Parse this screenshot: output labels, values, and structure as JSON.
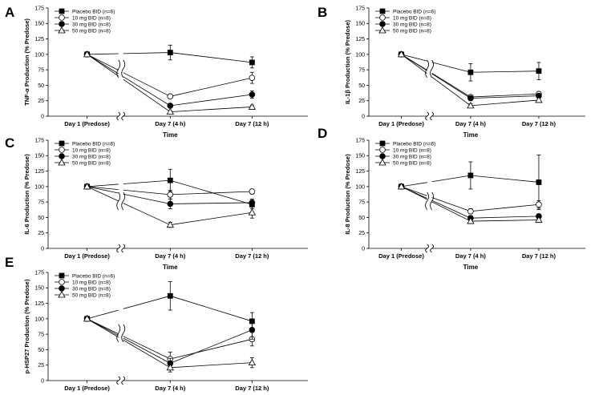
{
  "figure": {
    "legend": [
      "Placebo BID (n=6)",
      "10 mg BID (n=8)",
      "30 mg BID (n=8)",
      "50 mg BID (n=8)"
    ]
  },
  "chart_data": [
    {
      "panel": "A",
      "type": "line",
      "categories": [
        "Day 1 (Predose)",
        "Day 7 (4 h)",
        "Day 7 (12 h)"
      ],
      "xlabel": "Time",
      "ylabel": "TNF-α Production (% Predose)",
      "ylim": [
        0,
        175
      ],
      "yticks": [
        0,
        25,
        50,
        75,
        100,
        125,
        150,
        175
      ],
      "series": [
        {
          "name": "Placebo BID (n=6)",
          "marker": "square-filled",
          "values": [
            100,
            103,
            87
          ],
          "err": [
            0,
            12,
            9
          ]
        },
        {
          "name": "10 mg BID (n=8)",
          "marker": "circle-open",
          "values": [
            100,
            32,
            62
          ],
          "err": [
            0,
            3,
            9
          ]
        },
        {
          "name": "30 mg BID (n=8)",
          "marker": "circle-filled",
          "values": [
            100,
            17,
            35
          ],
          "err": [
            0,
            3,
            6
          ]
        },
        {
          "name": "50 mg BID (n=8)",
          "marker": "triangle-open",
          "values": [
            100,
            7,
            15
          ],
          "err": [
            0,
            2,
            3
          ]
        }
      ]
    },
    {
      "panel": "B",
      "type": "line",
      "categories": [
        "Day 1 (Predose)",
        "Day 7 (4 h)",
        "Day 7 (12 h)"
      ],
      "xlabel": "Time",
      "ylabel": "IL-1β Production (% Predose)",
      "ylim": [
        0,
        175
      ],
      "yticks": [
        0,
        25,
        50,
        75,
        100,
        125,
        150,
        175
      ],
      "series": [
        {
          "name": "Placebo BID (n=6)",
          "marker": "square-filled",
          "values": [
            100,
            71,
            73
          ],
          "err": [
            0,
            14,
            14
          ]
        },
        {
          "name": "10 mg BID (n=8)",
          "marker": "circle-open",
          "values": [
            100,
            31,
            36
          ],
          "err": [
            0,
            3,
            3
          ]
        },
        {
          "name": "30 mg BID (n=8)",
          "marker": "circle-filled",
          "values": [
            100,
            29,
            33
          ],
          "err": [
            0,
            3,
            3
          ]
        },
        {
          "name": "50 mg BID (n=8)",
          "marker": "triangle-open",
          "values": [
            100,
            17,
            26
          ],
          "err": [
            0,
            3,
            3
          ]
        }
      ]
    },
    {
      "panel": "C",
      "type": "line",
      "categories": [
        "Day 1 (Predose)",
        "Day 7 (4 h)",
        "Day 7 (12 h)"
      ],
      "xlabel": "Time",
      "ylabel": "IL-6 Production (% Predose)",
      "ylim": [
        0,
        175
      ],
      "yticks": [
        0,
        25,
        50,
        75,
        100,
        125,
        150,
        175
      ],
      "series": [
        {
          "name": "Placebo BID (n=6)",
          "marker": "square-filled",
          "values": [
            100,
            110,
            71
          ],
          "err": [
            0,
            18,
            7
          ]
        },
        {
          "name": "10 mg BID (n=8)",
          "marker": "circle-open",
          "values": [
            100,
            87,
            92
          ],
          "err": [
            0,
            7,
            4
          ]
        },
        {
          "name": "30 mg BID (n=8)",
          "marker": "circle-filled",
          "values": [
            100,
            72,
            74
          ],
          "err": [
            0,
            8,
            6
          ]
        },
        {
          "name": "50 mg BID (n=8)",
          "marker": "triangle-open",
          "values": [
            100,
            38,
            58
          ],
          "err": [
            0,
            4,
            9
          ]
        }
      ]
    },
    {
      "panel": "D",
      "type": "line",
      "categories": [
        "Day 1 (Predose)",
        "Day 7 (4 h)",
        "Day 7 (12 h)"
      ],
      "xlabel": "Time",
      "ylabel": "IL-8 Production (% Predose)",
      "ylim": [
        0,
        175
      ],
      "yticks": [
        0,
        25,
        50,
        75,
        100,
        125,
        150,
        175
      ],
      "series": [
        {
          "name": "Placebo BID (n=6)",
          "marker": "square-filled",
          "values": [
            100,
            118,
            107
          ],
          "err": [
            0,
            22,
            44
          ]
        },
        {
          "name": "10 mg BID (n=8)",
          "marker": "circle-open",
          "values": [
            100,
            60,
            71
          ],
          "err": [
            0,
            4,
            6
          ]
        },
        {
          "name": "30 mg BID (n=8)",
          "marker": "circle-filled",
          "values": [
            100,
            49,
            52
          ],
          "err": [
            0,
            4,
            4
          ]
        },
        {
          "name": "50 mg BID (n=8)",
          "marker": "triangle-open",
          "values": [
            100,
            44,
            46
          ],
          "err": [
            0,
            4,
            4
          ]
        }
      ]
    },
    {
      "panel": "E",
      "type": "line",
      "categories": [
        "Day 1 (Predose)",
        "Day 7 (4 h)",
        "Day 7 (12 h)"
      ],
      "xlabel": "Time",
      "ylabel": "p-HSP27 Production (% Predose)",
      "ylim": [
        0,
        175
      ],
      "yticks": [
        0,
        25,
        50,
        75,
        100,
        125,
        150,
        175
      ],
      "series": [
        {
          "name": "Placebo BID (n=6)",
          "marker": "square-filled",
          "values": [
            100,
            137,
            96
          ],
          "err": [
            0,
            23,
            14
          ]
        },
        {
          "name": "10 mg BID (n=8)",
          "marker": "circle-open",
          "values": [
            100,
            35,
            67
          ],
          "err": [
            0,
            11,
            11
          ]
        },
        {
          "name": "30 mg BID (n=8)",
          "marker": "circle-filled",
          "values": [
            100,
            28,
            82
          ],
          "err": [
            0,
            8,
            15
          ]
        },
        {
          "name": "50 mg BID (n=8)",
          "marker": "triangle-open",
          "values": [
            100,
            21,
            29
          ],
          "err": [
            0,
            7,
            8
          ]
        }
      ]
    }
  ]
}
